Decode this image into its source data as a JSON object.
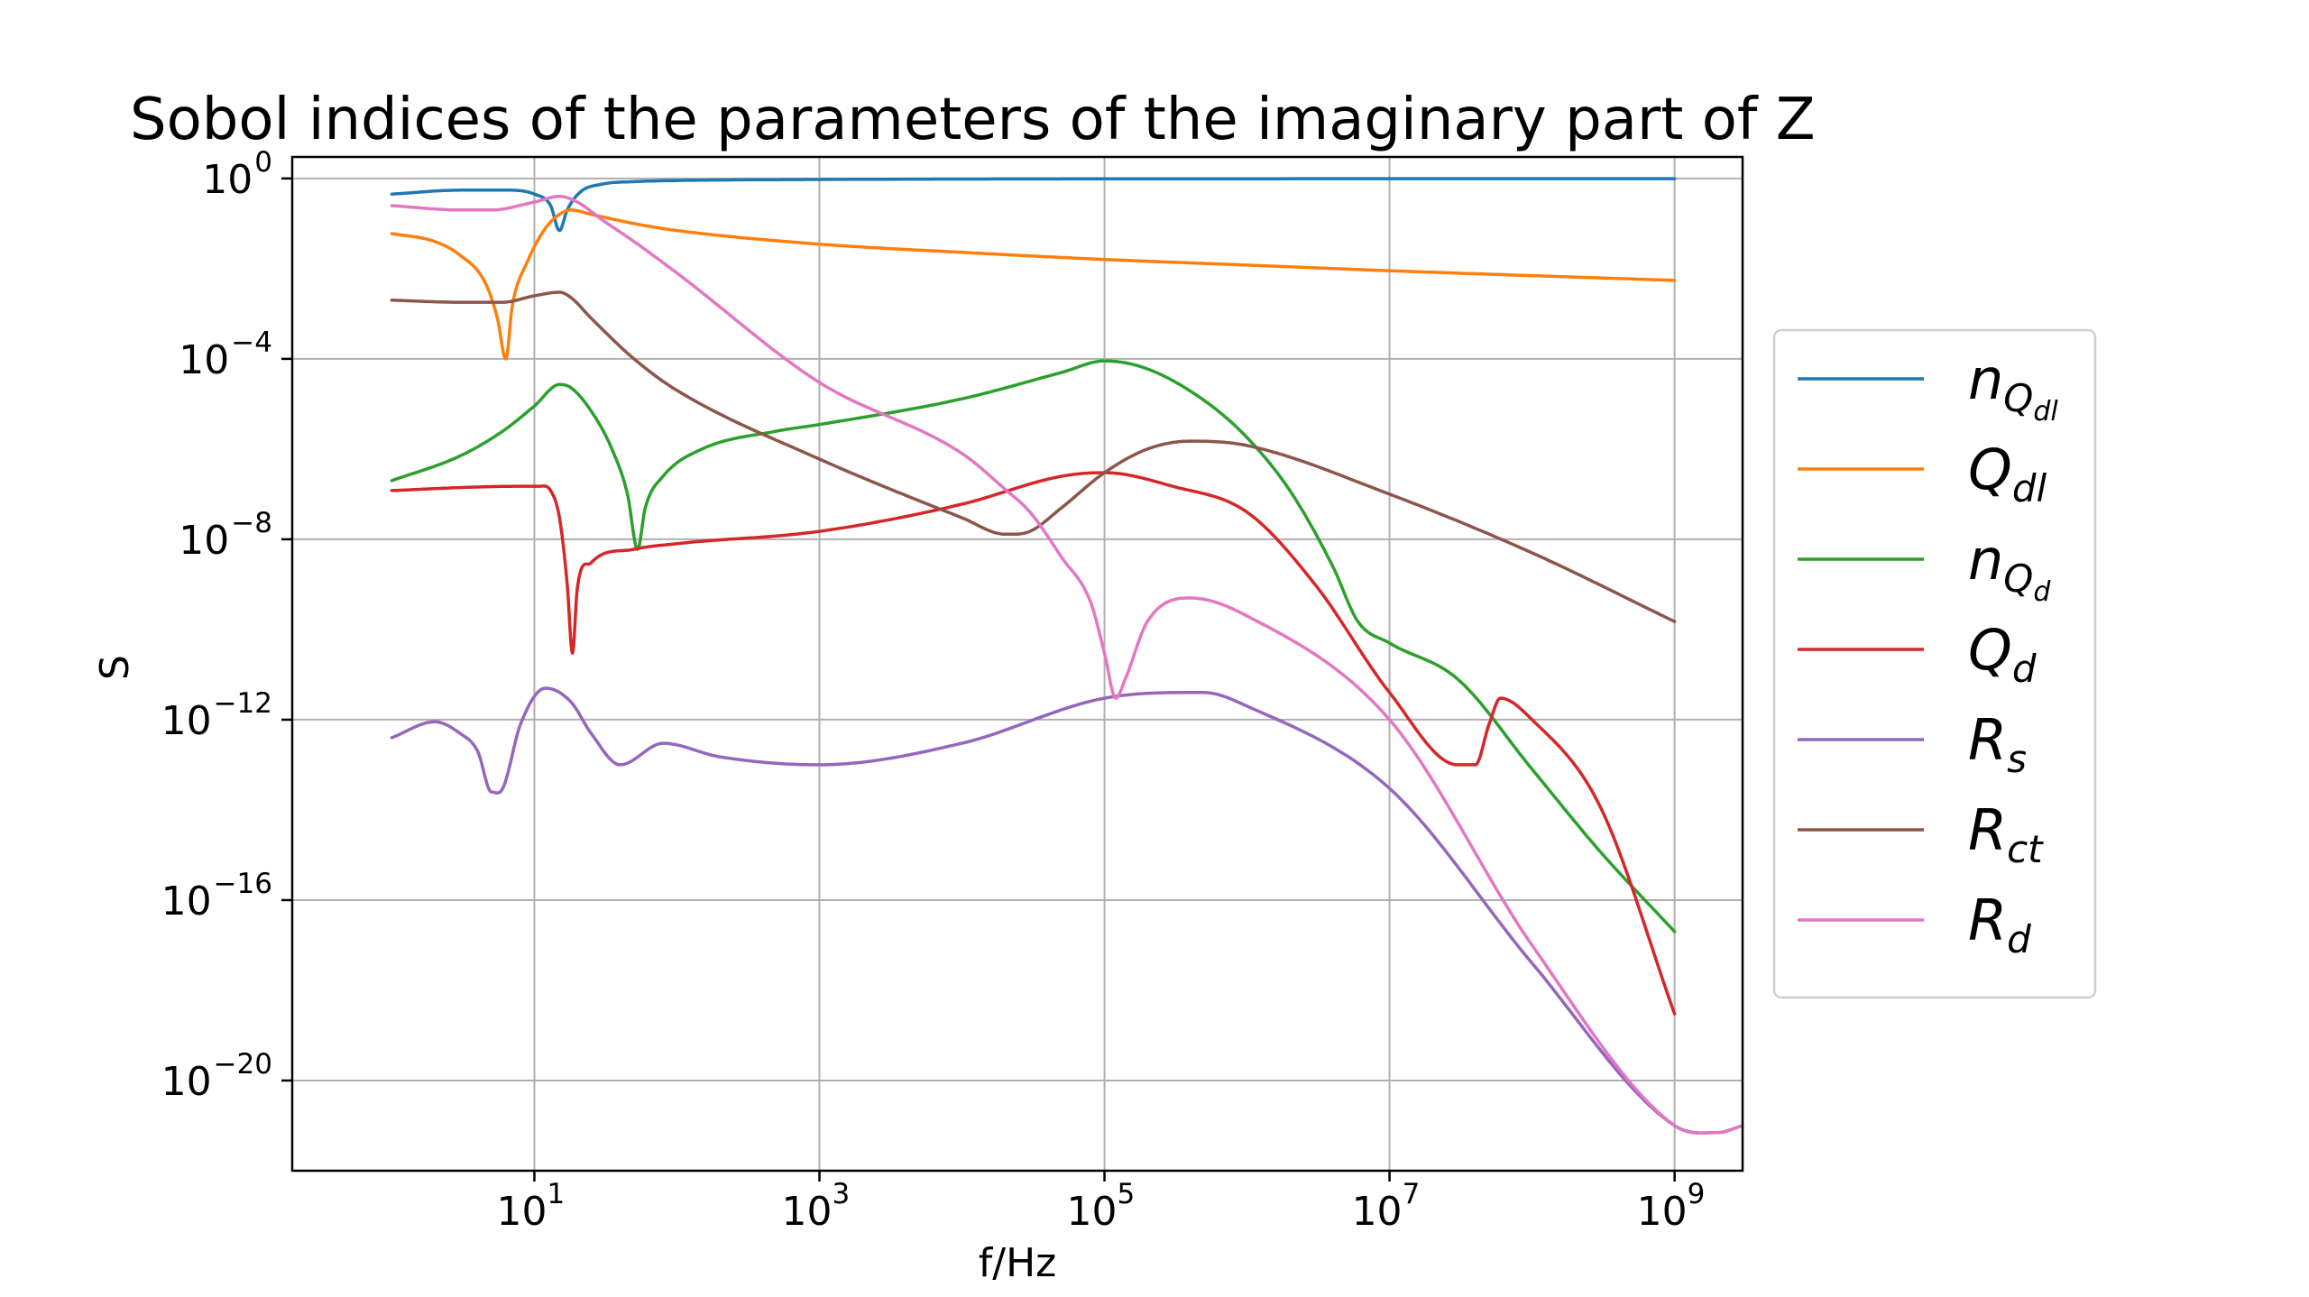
{
  "chart_data": {
    "type": "line",
    "title": "Sobol indices of the parameters of the imaginary part of Z",
    "xlabel": "f/Hz",
    "ylabel": "S",
    "x_scale": "log",
    "y_scale": "log",
    "xlim": [
      0.2,
      3000000000.0
    ],
    "ylim": [
      1e-22,
      3
    ],
    "grid": true,
    "legend_position": "right-outside",
    "x_ticks": [
      {
        "base": "10",
        "exp": "1",
        "value": 10
      },
      {
        "base": "10",
        "exp": "3",
        "value": 1000
      },
      {
        "base": "10",
        "exp": "5",
        "value": 100000
      },
      {
        "base": "10",
        "exp": "7",
        "value": 10000000
      },
      {
        "base": "10",
        "exp": "9",
        "value": 1000000000
      }
    ],
    "y_ticks": [
      {
        "base": "10",
        "exp": "0",
        "value": 1
      },
      {
        "base": "10",
        "exp": "−4",
        "value": 0.0001
      },
      {
        "base": "10",
        "exp": "−8",
        "value": 1e-08
      },
      {
        "base": "10",
        "exp": "−12",
        "value": 1e-12
      },
      {
        "base": "10",
        "exp": "−16",
        "value": 1e-16
      },
      {
        "base": "10",
        "exp": "−20",
        "value": 1e-20
      }
    ],
    "series": [
      {
        "name": "n_Qdl",
        "legend": {
          "main": "n",
          "sub": "Q",
          "subsub": "dl"
        },
        "color": "#1f77b4",
        "points": [
          [
            1,
            0.45
          ],
          [
            3,
            0.55
          ],
          [
            6,
            0.55
          ],
          [
            10,
            0.45
          ],
          [
            13,
            0.25
          ],
          [
            15,
            0.07
          ],
          [
            17,
            0.2
          ],
          [
            21,
            0.5
          ],
          [
            30,
            0.75
          ],
          [
            50,
            0.85
          ],
          [
            100,
            0.9
          ],
          [
            1000,
            0.95
          ],
          [
            100000.0,
            0.98
          ],
          [
            1000000000.0,
            0.99
          ]
        ]
      },
      {
        "name": "Q_dl",
        "legend": {
          "main": "Q",
          "sub": "dl",
          "subsub": ""
        },
        "color": "#ff7f0e",
        "points": [
          [
            1,
            0.06
          ],
          [
            2,
            0.04
          ],
          [
            3,
            0.02
          ],
          [
            4.5,
            0.005
          ],
          [
            5.5,
            0.0008
          ],
          [
            6.3,
            0.0001
          ],
          [
            7,
            0.0015
          ],
          [
            9,
            0.015
          ],
          [
            12,
            0.08
          ],
          [
            15,
            0.16
          ],
          [
            18,
            0.2
          ],
          [
            25,
            0.16
          ],
          [
            50,
            0.1
          ],
          [
            100,
            0.07
          ],
          [
            1000,
            0.035
          ],
          [
            10000.0,
            0.023
          ],
          [
            100000.0,
            0.016
          ],
          [
            1000000.0,
            0.012
          ],
          [
            10000000.0,
            0.009
          ],
          [
            100000000.0,
            0.007
          ],
          [
            1000000000.0,
            0.0055
          ]
        ]
      },
      {
        "name": "n_Qd",
        "legend": {
          "main": "n",
          "sub": "Q",
          "subsub": "d"
        },
        "color": "#2ca02c",
        "points": [
          [
            1,
            2e-07
          ],
          [
            3,
            7e-07
          ],
          [
            6,
            2.5e-06
          ],
          [
            10,
            9e-06
          ],
          [
            15,
            2.7e-05
          ],
          [
            18,
            2.3e-05
          ],
          [
            25,
            7e-06
          ],
          [
            35,
            1e-06
          ],
          [
            45,
            1e-07
          ],
          [
            53,
            6e-09
          ],
          [
            60,
            5e-08
          ],
          [
            80,
            2.5e-07
          ],
          [
            150,
            1e-06
          ],
          [
            500,
            2.5e-06
          ],
          [
            1000,
            3.5e-06
          ],
          [
            10000.0,
            1.3e-05
          ],
          [
            50000.0,
            5e-05
          ],
          [
            100000.0,
            9e-05
          ],
          [
            200000.0,
            6e-05
          ],
          [
            500000.0,
            1.2e-05
          ],
          [
            1000000.0,
            1.8e-06
          ],
          [
            2000000.0,
            1.2e-07
          ],
          [
            4000000.0,
            2.5e-09
          ],
          [
            6000000.0,
            1.5e-10
          ],
          [
            10000000.0,
            5e-11
          ],
          [
            30000000.0,
            8e-12
          ],
          [
            100000000.0,
            8e-14
          ],
          [
            300000000.0,
            1.2e-15
          ],
          [
            1000000000.0,
            2e-17
          ]
        ]
      },
      {
        "name": "Q_d",
        "legend": {
          "main": "Q",
          "sub": "d",
          "subsub": ""
        },
        "color": "#d62728",
        "points": [
          [
            1,
            1.2e-07
          ],
          [
            3,
            1.4e-07
          ],
          [
            8,
            1.5e-07
          ],
          [
            11,
            1.5e-07
          ],
          [
            13,
            1.2e-07
          ],
          [
            15,
            3e-08
          ],
          [
            17,
            1e-09
          ],
          [
            18.5,
            3e-11
          ],
          [
            20,
            8e-10
          ],
          [
            25,
            3e-09
          ],
          [
            50,
            6e-09
          ],
          [
            100,
            8e-09
          ],
          [
            1000,
            1.5e-08
          ],
          [
            10000.0,
            6e-08
          ],
          [
            50000.0,
            2.5e-07
          ],
          [
            100000.0,
            3e-07
          ],
          [
            300000.0,
            1.5e-07
          ],
          [
            1000000.0,
            4e-08
          ],
          [
            3000000.0,
            1e-09
          ],
          [
            10000000.0,
            4e-12
          ],
          [
            30000000.0,
            1e-13
          ],
          [
            40000000.0,
            1e-13
          ],
          [
            50000000.0,
            8e-13
          ],
          [
            60000000.0,
            3e-12
          ],
          [
            100000000.0,
            1e-12
          ],
          [
            300000000.0,
            1.2e-14
          ],
          [
            1000000000.0,
            3e-19
          ]
        ]
      },
      {
        "name": "R_s",
        "legend": {
          "main": "R",
          "sub": "s",
          "subsub": ""
        },
        "color": "#9467bd",
        "points": [
          [
            1,
            4e-13
          ],
          [
            2,
            9e-13
          ],
          [
            3,
            5e-13
          ],
          [
            4,
            2e-13
          ],
          [
            5,
            2.5e-14
          ],
          [
            6,
            3e-14
          ],
          [
            8,
            8e-13
          ],
          [
            12,
            5e-12
          ],
          [
            18,
            2.5e-12
          ],
          [
            25,
            5e-13
          ],
          [
            40,
            1e-13
          ],
          [
            80,
            3e-13
          ],
          [
            200,
            1.5e-13
          ],
          [
            1000,
            1e-13
          ],
          [
            10000.0,
            3e-13
          ],
          [
            100000.0,
            3e-12
          ],
          [
            500000.0,
            4e-12
          ],
          [
            1000000.0,
            2e-12
          ],
          [
            10000000.0,
            3e-14
          ],
          [
            100000000.0,
            4e-18
          ],
          [
            1000000000.0,
            1e-21
          ],
          [
            2000000000.0,
            7e-22
          ],
          [
            3000000000.0,
            1e-21
          ]
        ]
      },
      {
        "name": "R_ct",
        "legend": {
          "main": "R",
          "sub": "ct",
          "subsub": ""
        },
        "color": "#8c564b",
        "points": [
          [
            1,
            0.002
          ],
          [
            3,
            0.0018
          ],
          [
            6,
            0.0018
          ],
          [
            10,
            0.0025
          ],
          [
            15,
            0.003
          ],
          [
            18,
            0.0023
          ],
          [
            25,
            0.0008
          ],
          [
            50,
            0.0001
          ],
          [
            100,
            2e-05
          ],
          [
            1000,
            6e-07
          ],
          [
            10000.0,
            3e-08
          ],
          [
            20000.0,
            1.3e-08
          ],
          [
            30000.0,
            1.5e-08
          ],
          [
            50000.0,
            5e-08
          ],
          [
            100000.0,
            3e-07
          ],
          [
            200000.0,
            1e-06
          ],
          [
            400000.0,
            1.5e-06
          ],
          [
            1000000.0,
            1.2e-06
          ],
          [
            10000000.0,
            1e-07
          ],
          [
            100000000.0,
            5e-09
          ],
          [
            1000000000.0,
            1.5e-10
          ]
        ]
      },
      {
        "name": "R_d",
        "legend": {
          "main": "R",
          "sub": "d",
          "subsub": ""
        },
        "color": "#e377c2",
        "points": [
          [
            1,
            0.25
          ],
          [
            3,
            0.2
          ],
          [
            5,
            0.2
          ],
          [
            10,
            0.3
          ],
          [
            15,
            0.4
          ],
          [
            20,
            0.3
          ],
          [
            30,
            0.12
          ],
          [
            50,
            0.04
          ],
          [
            100,
            0.008
          ],
          [
            1000,
            3e-05
          ],
          [
            10000.0,
            8e-07
          ],
          [
            20000.0,
            1.3e-07
          ],
          [
            30000.0,
            4e-08
          ],
          [
            50000.0,
            4e-09
          ],
          [
            80000.0,
            4e-10
          ],
          [
            100000.0,
            3e-11
          ],
          [
            120000.0,
            3e-12
          ],
          [
            140000.0,
            8e-12
          ],
          [
            200000.0,
            1.5e-10
          ],
          [
            400000.0,
            5e-10
          ],
          [
            1000000.0,
            2e-10
          ],
          [
            10000000.0,
            1e-12
          ],
          [
            100000000.0,
            1e-17
          ],
          [
            1000000000.0,
            1e-21
          ],
          [
            2000000000.0,
            7e-22
          ],
          [
            3000000000.0,
            1e-21
          ]
        ]
      }
    ]
  }
}
